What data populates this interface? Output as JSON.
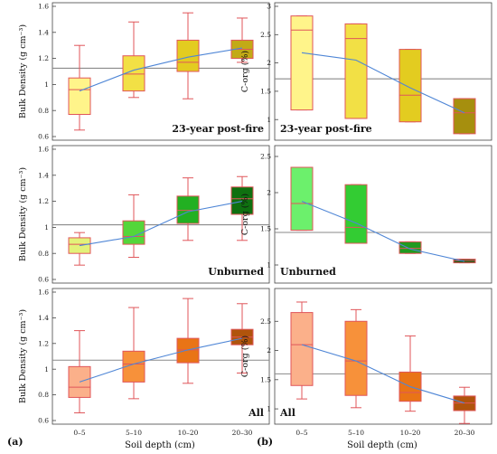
{
  "figure": {
    "label_a": "(a)",
    "label_b": "(b)",
    "xlabel": "Soil depth (cm)"
  },
  "chart_data": [
    {
      "type": "box",
      "id": "a1",
      "column": "a",
      "ylabel": "Bulk Density (g cm⁻³)",
      "panel_label": "23-year post-fire",
      "categories": [
        "0–5",
        "5–10",
        "10–20",
        "20–30"
      ],
      "ylim": [
        0.6,
        1.6
      ],
      "yticks": [
        0.6,
        0.8,
        1,
        1.2,
        1.4,
        1.6
      ],
      "reference_line": 1.125,
      "trend": [
        0.95,
        1.11,
        1.21,
        1.28
      ],
      "boxes": [
        {
          "whisker_low": 0.65,
          "q1": 0.77,
          "median": 0.96,
          "q3": 1.05,
          "whisker_high": 1.3,
          "color": "#fff48a"
        },
        {
          "whisker_low": 0.9,
          "q1": 0.95,
          "median": 1.08,
          "q3": 1.22,
          "whisker_high": 1.48,
          "color": "#f2e045"
        },
        {
          "whisker_low": 0.89,
          "q1": 1.1,
          "median": 1.17,
          "q3": 1.34,
          "whisker_high": 1.55,
          "color": "#e3cc20"
        },
        {
          "whisker_low": 1.17,
          "q1": 1.2,
          "median": 1.27,
          "q3": 1.34,
          "whisker_high": 1.51,
          "color": "#c2aa16"
        }
      ]
    },
    {
      "type": "box",
      "id": "b1",
      "column": "b",
      "ylabel": "C-org (%)",
      "panel_label": "23-year post-fire",
      "categories": [
        "0–5",
        "5–10",
        "10–20",
        "20–30"
      ],
      "ylim": [
        0.7,
        3.0
      ],
      "yticks": [
        1,
        1.5,
        2,
        2.5,
        3
      ],
      "reference_line": 1.72,
      "trend": [
        2.18,
        2.05,
        1.56,
        1.12
      ],
      "boxes": [
        {
          "whisker_low": 1.17,
          "q1": 1.17,
          "median": 2.58,
          "q3": 2.83,
          "whisker_high": 2.83,
          "color": "#fff48a"
        },
        {
          "whisker_low": 1.02,
          "q1": 1.02,
          "median": 2.43,
          "q3": 2.69,
          "whisker_high": 2.69,
          "color": "#f2e045"
        },
        {
          "whisker_low": 0.96,
          "q1": 0.96,
          "median": 1.43,
          "q3": 2.24,
          "whisker_high": 2.24,
          "color": "#e3cc20"
        },
        {
          "whisker_low": 0.75,
          "q1": 0.75,
          "median": 1.12,
          "q3": 1.37,
          "whisker_high": 1.37,
          "color": "#a68f0e"
        }
      ]
    },
    {
      "type": "box",
      "id": "a2",
      "column": "a",
      "ylabel": "Bulk Density (g cm⁻³)",
      "panel_label": "Unburned",
      "categories": [
        "0–5",
        "5–10",
        "10–20",
        "20–30"
      ],
      "ylim": [
        0.6,
        1.6
      ],
      "yticks": [
        0.6,
        0.8,
        1,
        1.2,
        1.4,
        1.6
      ],
      "reference_line": 1.02,
      "trend": [
        0.86,
        0.93,
        1.12,
        1.2
      ],
      "boxes": [
        {
          "whisker_low": 0.71,
          "q1": 0.8,
          "median": 0.87,
          "q3": 0.92,
          "whisker_high": 0.96,
          "color": "#e3f27a"
        },
        {
          "whisker_low": 0.77,
          "q1": 0.87,
          "median": 0.93,
          "q3": 1.05,
          "whisker_high": 1.25,
          "color": "#54d63a"
        },
        {
          "whisker_low": 0.9,
          "q1": 1.03,
          "median": 1.13,
          "q3": 1.24,
          "whisker_high": 1.38,
          "color": "#22b022"
        },
        {
          "whisker_low": 0.9,
          "q1": 1.1,
          "median": 1.22,
          "q3": 1.31,
          "whisker_high": 1.39,
          "color": "#0f7010"
        }
      ]
    },
    {
      "type": "box",
      "id": "b2",
      "column": "b",
      "ylabel": "C-org (%)",
      "panel_label": "Unburned",
      "categories": [
        "0–5",
        "5–10",
        "10–20",
        "20–30"
      ],
      "ylim": [
        0.8,
        2.6
      ],
      "yticks": [
        1,
        1.5,
        2,
        2.5
      ],
      "reference_line": 1.45,
      "trend": [
        1.88,
        1.58,
        1.22,
        1.05
      ],
      "boxes": [
        {
          "whisker_low": 1.48,
          "q1": 1.48,
          "median": 1.85,
          "q3": 2.35,
          "whisker_high": 2.35,
          "color": "#6cf06c"
        },
        {
          "whisker_low": 1.3,
          "q1": 1.3,
          "median": 1.52,
          "q3": 2.11,
          "whisker_high": 2.11,
          "color": "#33cc33"
        },
        {
          "whisker_low": 1.16,
          "q1": 1.16,
          "median": 1.23,
          "q3": 1.32,
          "whisker_high": 1.32,
          "color": "#209a20"
        },
        {
          "whisker_low": 1.03,
          "q1": 1.03,
          "median": 1.06,
          "q3": 1.08,
          "whisker_high": 1.08,
          "color": "#0d5a0d"
        }
      ]
    },
    {
      "type": "box",
      "id": "a3",
      "column": "a",
      "ylabel": "Bulk Density (g cm⁻³)",
      "panel_label": "All",
      "categories": [
        "0–5",
        "5–10",
        "10–20",
        "20–30"
      ],
      "ylim": [
        0.6,
        1.6
      ],
      "yticks": [
        0.6,
        0.8,
        1,
        1.2,
        1.4,
        1.6
      ],
      "reference_line": 1.07,
      "trend": [
        0.9,
        1.04,
        1.15,
        1.24
      ],
      "boxes": [
        {
          "whisker_low": 0.66,
          "q1": 0.78,
          "median": 0.86,
          "q3": 1.02,
          "whisker_high": 1.3,
          "color": "#fbb08a"
        },
        {
          "whisker_low": 0.77,
          "q1": 0.9,
          "median": 1.04,
          "q3": 1.14,
          "whisker_high": 1.48,
          "color": "#f7913a"
        },
        {
          "whisker_low": 0.89,
          "q1": 1.05,
          "median": 1.15,
          "q3": 1.24,
          "whisker_high": 1.55,
          "color": "#e97416"
        },
        {
          "whisker_low": 0.97,
          "q1": 1.19,
          "median": 1.25,
          "q3": 1.31,
          "whisker_high": 1.51,
          "color": "#b0540c"
        }
      ]
    },
    {
      "type": "box",
      "id": "b3",
      "column": "b",
      "ylabel": "C-org (%)",
      "panel_label": "All",
      "categories": [
        "0–5",
        "5–10",
        "10–20",
        "20–30"
      ],
      "ylim": [
        0.8,
        3.0
      ],
      "yticks": [
        1,
        1.5,
        2,
        2.5
      ],
      "reference_line": 1.6,
      "trend": [
        2.1,
        1.82,
        1.38,
        1.1
      ],
      "boxes": [
        {
          "whisker_low": 1.17,
          "q1": 1.4,
          "median": 2.1,
          "q3": 2.65,
          "whisker_high": 2.83,
          "color": "#fbb08a"
        },
        {
          "whisker_low": 1.02,
          "q1": 1.23,
          "median": 1.82,
          "q3": 2.5,
          "whisker_high": 2.7,
          "color": "#f7913a"
        },
        {
          "whisker_low": 0.96,
          "q1": 1.13,
          "median": 1.28,
          "q3": 1.63,
          "whisker_high": 2.25,
          "color": "#e97416"
        },
        {
          "whisker_low": 0.75,
          "q1": 0.97,
          "median": 1.1,
          "q3": 1.22,
          "whisker_high": 1.37,
          "color": "#b0540c"
        }
      ]
    }
  ]
}
